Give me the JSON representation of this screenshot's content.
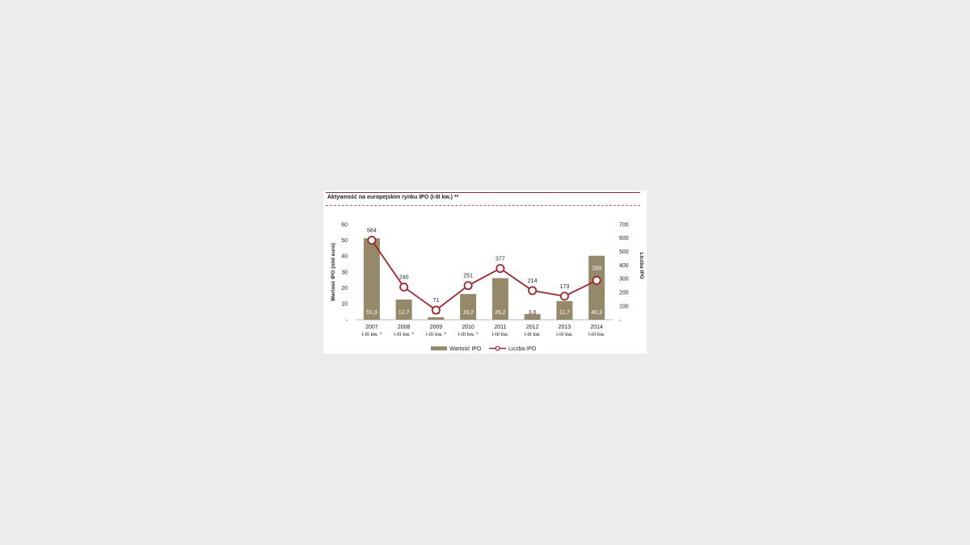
{
  "chart_data": {
    "type": "bar",
    "title": "Aktywność na europejskim rynku IPO (I-III kw.) **",
    "categories": [
      [
        "2007",
        "I-III kw. *"
      ],
      [
        "2008",
        "I-III kw. *"
      ],
      [
        "2009",
        "I-III kw. *"
      ],
      [
        "2010",
        "I-III kw. *"
      ],
      [
        "2011",
        "I-III kw."
      ],
      [
        "2012",
        "I-III kw."
      ],
      [
        "2013",
        "I-III kw."
      ],
      [
        "2014",
        "I-III kw."
      ]
    ],
    "series": [
      {
        "name": "Wartość IPO",
        "type": "bar",
        "axis": "left",
        "values": [
          51.3,
          12.7,
          1.6,
          16.2,
          26.2,
          3.6,
          11.7,
          40.3
        ],
        "labels": [
          "51,3",
          "12,7",
          "1,6",
          "16,2",
          "26,2",
          "3,6",
          "11,7",
          "40,3"
        ]
      },
      {
        "name": "Liczba IPO",
        "type": "line",
        "axis": "right",
        "values": [
          584,
          240,
          71,
          251,
          377,
          214,
          173,
          289
        ],
        "labels": [
          "584",
          "240",
          "71",
          "251",
          "377",
          "214",
          "173",
          "289"
        ]
      }
    ],
    "ylabel": "Wartość IPO (mld euro)",
    "y2label": "Liczba IPO",
    "ylim": [
      0,
      60
    ],
    "y2lim": [
      0,
      700
    ],
    "yticks": [
      "-",
      "10",
      "20",
      "30",
      "40",
      "50",
      "60"
    ],
    "y2ticks": [
      "-",
      "100",
      "200",
      "300",
      "400",
      "500",
      "600",
      "700"
    ],
    "legend": "bottom",
    "grid": false,
    "colors": {
      "bar": "#948a6a",
      "line": "#a3262a",
      "marker_fill": "#ffffff",
      "rule": "#9a2a2a"
    }
  }
}
